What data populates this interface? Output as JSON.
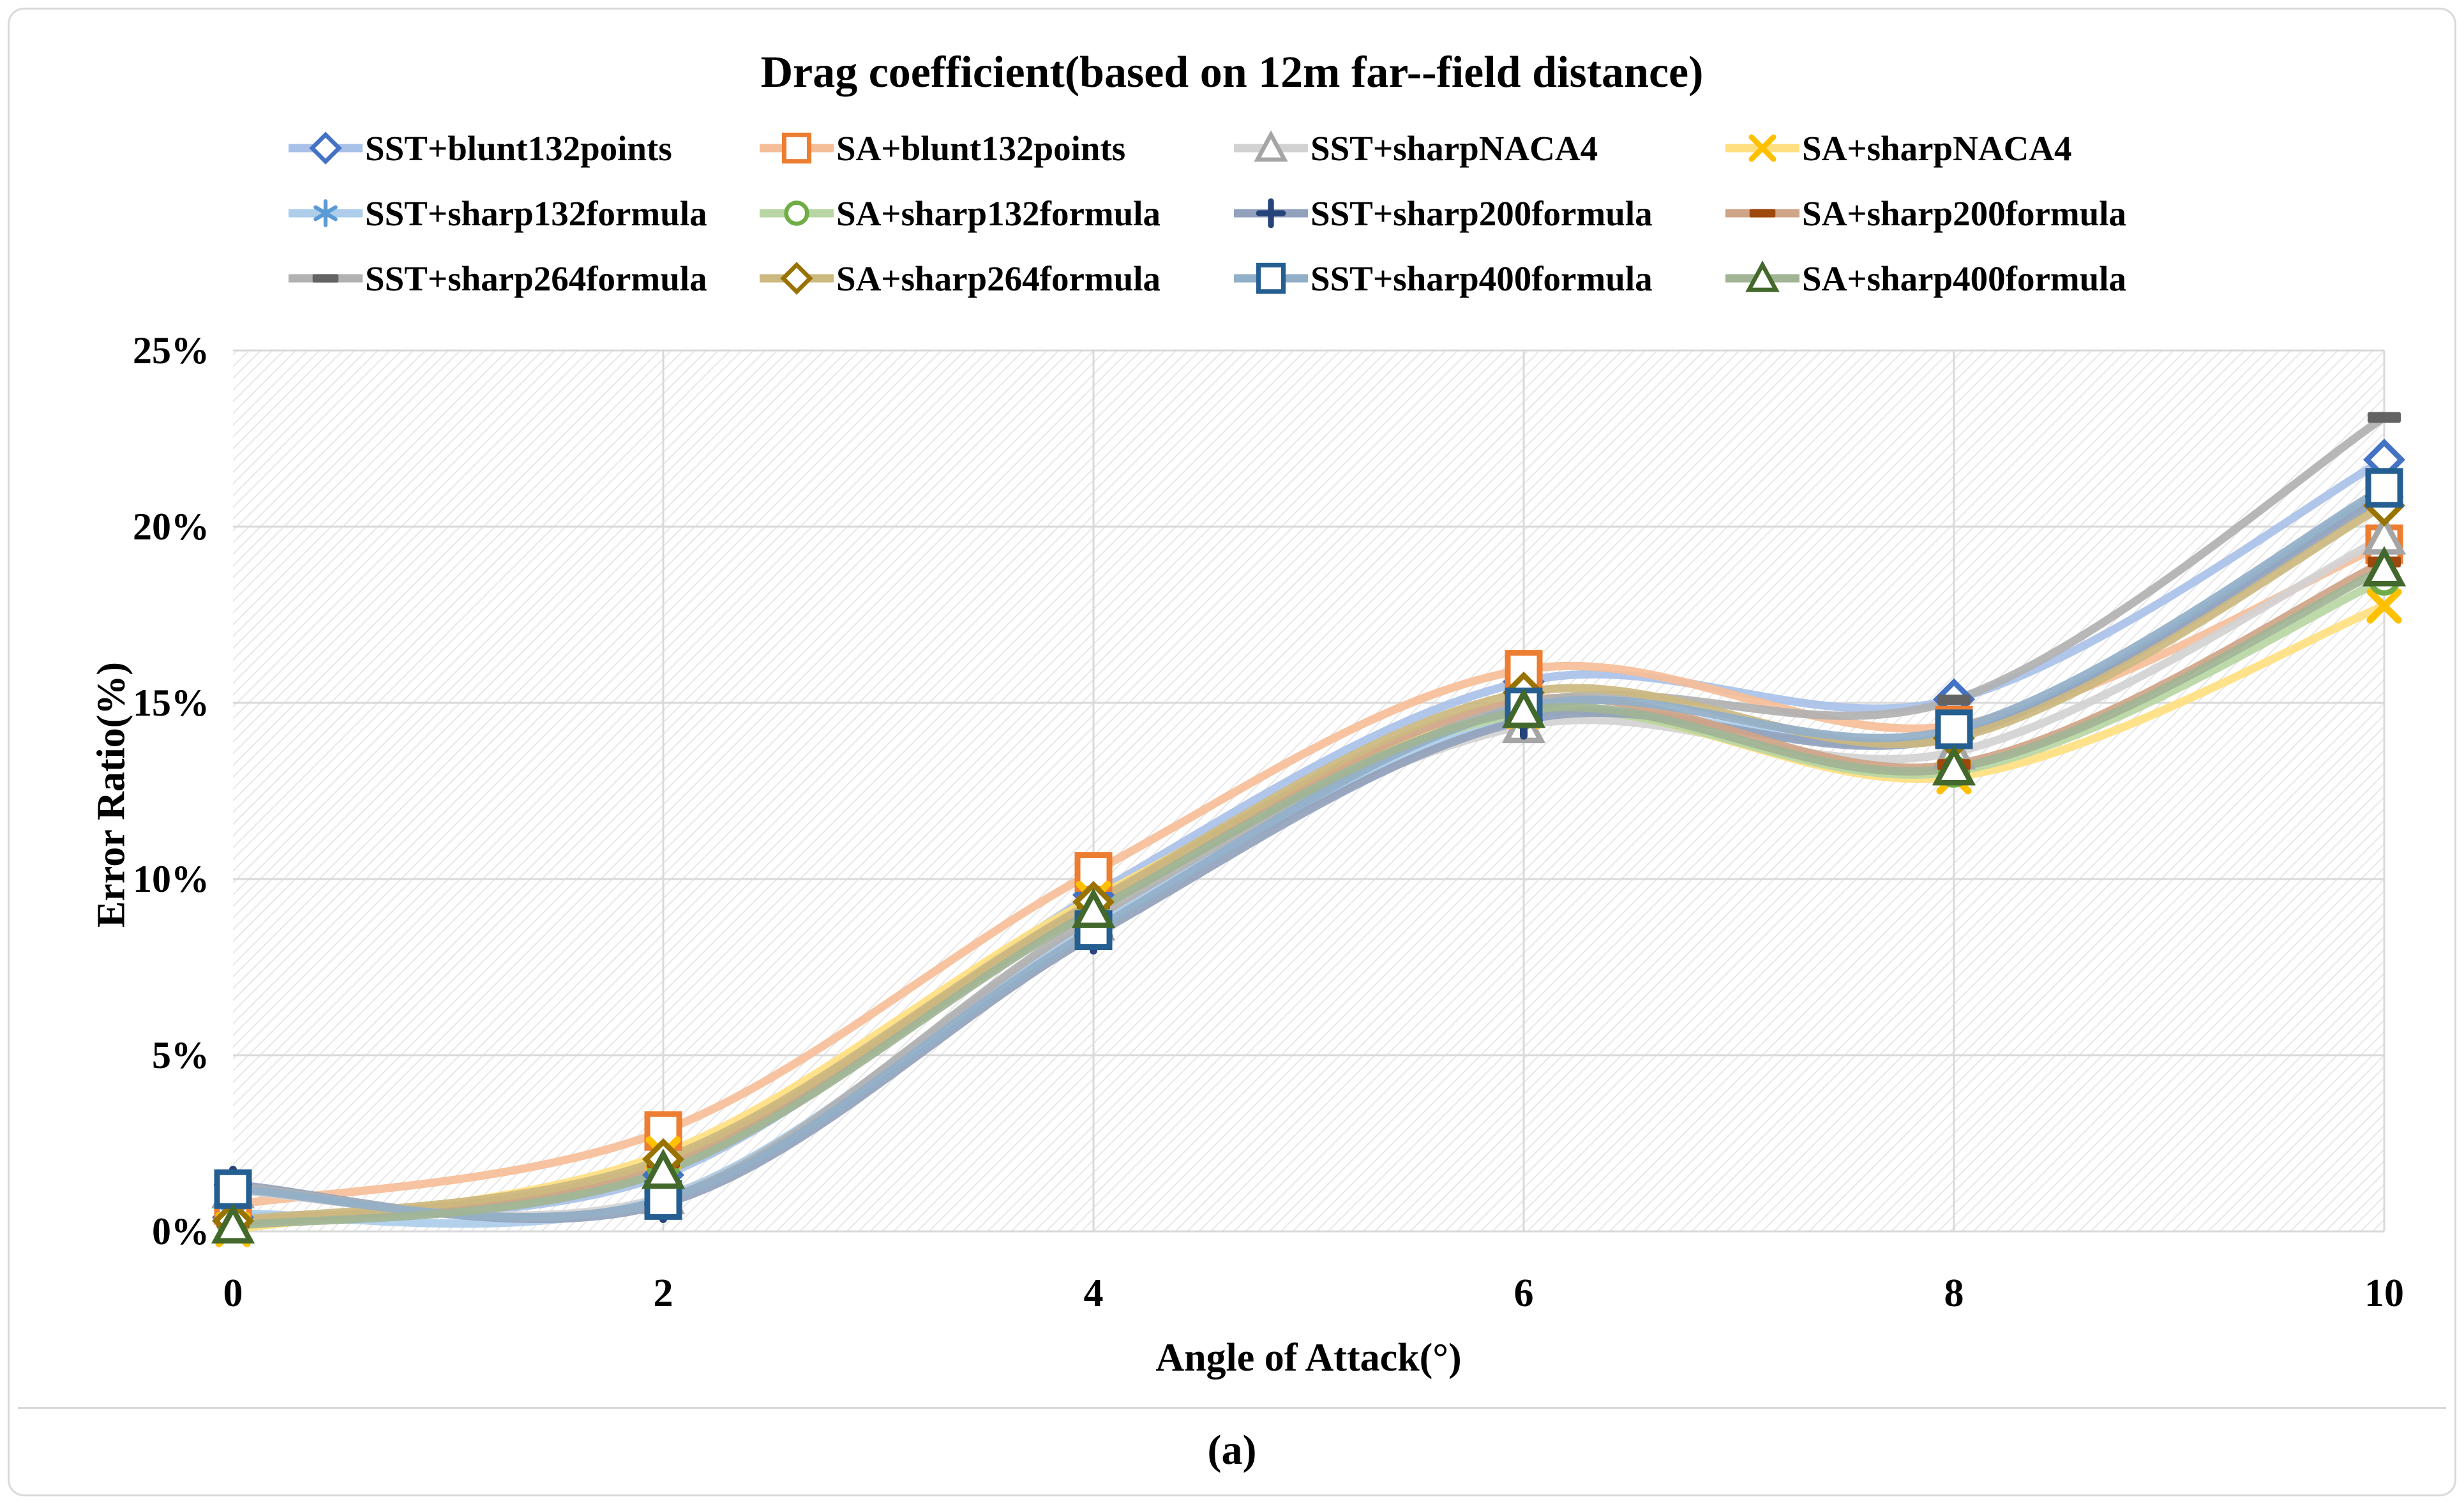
{
  "figure": {
    "caption": "(a)"
  },
  "chart": {
    "title": "Drag coefficient(based on 12m far--field distance)",
    "x_axis": {
      "title": "Angle of Attack(°)",
      "min": 0,
      "max": 10,
      "ticks": [
        0,
        2,
        4,
        6,
        8,
        10
      ],
      "tick_labels": [
        "0",
        "2",
        "4",
        "6",
        "8",
        "10"
      ]
    },
    "y_axis": {
      "title": "Error Ratio(%)",
      "min": 0,
      "max": 25,
      "gridline_step": 5,
      "tick_labels": [
        "0%",
        "5%",
        "10%",
        "15%",
        "20%",
        "25%"
      ]
    },
    "grid_color": "#d9d9d9",
    "hatch_color": "#e7e7e7",
    "plot_background": "diagonal-hatch",
    "legend_position": "top"
  },
  "chart_data": {
    "type": "line",
    "x": [
      0,
      2,
      4,
      6,
      8,
      10
    ],
    "xlim": [
      0,
      10
    ],
    "ylim": [
      0,
      25
    ],
    "y_unit": "percent",
    "series": [
      {
        "name": "SST+blunt132points",
        "marker": "diamond",
        "color": "#4472C4",
        "line_color": "#A9C1E8",
        "values": [
          0.4,
          1.6,
          9.55,
          15.6,
          15.1,
          21.9
        ]
      },
      {
        "name": "SA+blunt132points",
        "marker": "square",
        "color": "#ED7D31",
        "line_color": "#F6BE98",
        "values": [
          0.75,
          2.85,
          10.2,
          15.94,
          14.35,
          19.5
        ]
      },
      {
        "name": "SST+sharpNACA4",
        "marker": "triangle",
        "color": "#A5A5A5",
        "line_color": "#D2D2D2",
        "values": [
          1.15,
          0.98,
          8.75,
          14.35,
          13.6,
          19.7
        ]
      },
      {
        "name": "SA+sharpNACA4",
        "marker": "x",
        "color": "#FFC000",
        "line_color": "#FFDF80",
        "values": [
          0.05,
          2.2,
          9.45,
          14.75,
          12.9,
          17.75
        ]
      },
      {
        "name": "SST+sharp132formula",
        "marker": "asterisk",
        "color": "#5B9BD5",
        "line_color": "#ADCDEA",
        "values": [
          0.5,
          0.95,
          8.7,
          14.6,
          14.1,
          21.0
        ]
      },
      {
        "name": "SA+sharp132formula",
        "marker": "circle",
        "color": "#70AD47",
        "line_color": "#B8D6A3",
        "values": [
          0.2,
          1.8,
          9.15,
          14.7,
          13.05,
          18.5
        ]
      },
      {
        "name": "SST+sharp200formula",
        "marker": "plus",
        "color": "#264478",
        "line_color": "#93A2BC",
        "values": [
          1.32,
          0.78,
          8.4,
          14.5,
          14.05,
          20.85
        ]
      },
      {
        "name": "SA+sharp200formula",
        "marker": "dash",
        "color": "#9E480E",
        "line_color": "#CFA487",
        "values": [
          0.25,
          1.95,
          9.3,
          15.05,
          13.25,
          19.0
        ]
      },
      {
        "name": "SST+sharp264formula",
        "marker": "dash",
        "color": "#636363",
        "line_color": "#B1B1B1",
        "values": [
          1.25,
          0.9,
          8.9,
          14.95,
          15.08,
          23.1
        ]
      },
      {
        "name": "SA+sharp264formula",
        "marker": "diamond",
        "color": "#997300",
        "line_color": "#CCB980",
        "values": [
          0.3,
          2.05,
          9.35,
          15.29,
          14.0,
          20.6
        ]
      },
      {
        "name": "SST+sharp400formula",
        "marker": "square",
        "color": "#255E91",
        "line_color": "#92AFC8",
        "values": [
          1.2,
          0.89,
          8.55,
          14.87,
          14.25,
          21.1
        ]
      },
      {
        "name": "SA+sharp400formula",
        "marker": "triangle",
        "color": "#43682B",
        "line_color": "#A1B495",
        "values": [
          0.15,
          1.7,
          9.1,
          14.78,
          13.15,
          18.8
        ]
      }
    ],
    "legend_rows": [
      [
        0,
        1,
        2,
        3
      ],
      [
        4,
        5,
        6,
        7
      ],
      [
        8,
        9,
        10,
        11
      ]
    ]
  }
}
